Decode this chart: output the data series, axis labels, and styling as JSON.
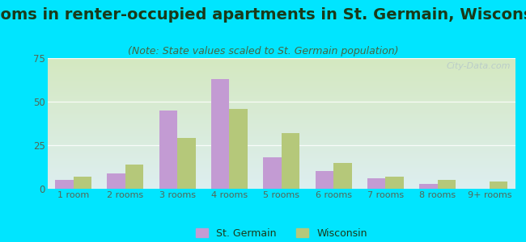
{
  "title": "Rooms in renter-occupied apartments in St. Germain, Wisconsin",
  "subtitle": "(Note: State values scaled to St. Germain population)",
  "categories": [
    "1 room",
    "2 rooms",
    "3 rooms",
    "4 rooms",
    "5 rooms",
    "6 rooms",
    "7 rooms",
    "8 rooms",
    "9+ rooms"
  ],
  "st_germain": [
    5,
    9,
    45,
    63,
    18,
    10,
    6,
    3,
    0
  ],
  "wisconsin": [
    7,
    14,
    29,
    46,
    32,
    15,
    7,
    5,
    4
  ],
  "bar_color_sg": "#c39bd3",
  "bar_color_wi": "#b5c87a",
  "background_outer": "#00e5ff",
  "background_plot_top": "#ddeef0",
  "background_plot_bottom": "#d4e8c0",
  "ylim": [
    0,
    75
  ],
  "yticks": [
    0,
    25,
    50,
    75
  ],
  "watermark": "City-Data.com",
  "legend_sg": "St. Germain",
  "legend_wi": "Wisconsin",
  "title_fontsize": 14,
  "subtitle_fontsize": 9,
  "bar_width": 0.35,
  "gridline_color": "#e0ece0",
  "tick_color": "#556655",
  "title_color": "#1a3a1a",
  "subtitle_color": "#446644"
}
